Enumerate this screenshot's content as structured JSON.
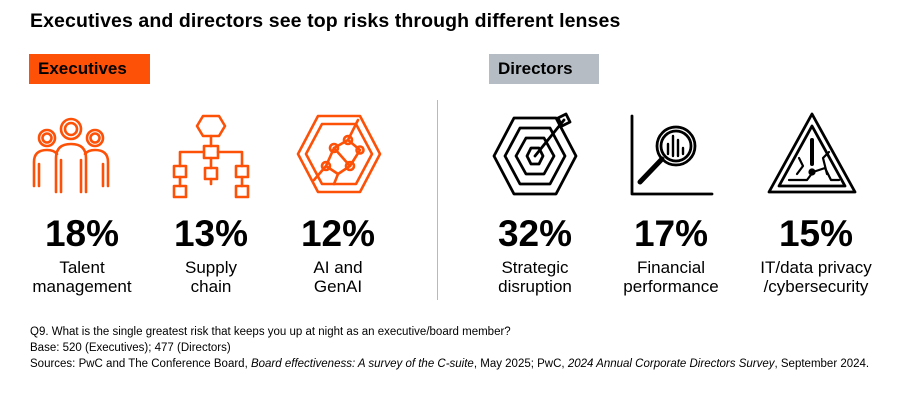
{
  "title": "Executives and directors see top risks through different lenses",
  "groups": {
    "executives": {
      "label": "Executives",
      "color": "#fd5108",
      "items": [
        {
          "value": "18%",
          "label_line1": "Talent",
          "label_line2": "management",
          "icon": "people-group-icon"
        },
        {
          "value": "13%",
          "label_line1": "Supply",
          "label_line2": "chain",
          "icon": "flowchart-icon"
        },
        {
          "value": "12%",
          "label_line1": "AI and",
          "label_line2": "GenAI",
          "icon": "ai-hexagon-network-icon"
        }
      ]
    },
    "directors": {
      "label": "Directors",
      "color": "#b5bcc4",
      "items": [
        {
          "value": "32%",
          "label_line1": "Strategic",
          "label_line2": "disruption",
          "icon": "target-hexagon-icon"
        },
        {
          "value": "17%",
          "label_line1": "Financial",
          "label_line2": "performance",
          "icon": "magnifier-chart-icon"
        },
        {
          "value": "15%",
          "label_line1": "IT/data privacy",
          "label_line2": "/cybersecurity",
          "icon": "warning-triangle-icon"
        }
      ]
    }
  },
  "footnotes": {
    "question": "Q9. What is the single greatest risk that keeps you up at night as an executive/board member?",
    "base": "Base: 520 (Executives); 477 (Directors)",
    "sources_prefix": "Sources: PwC and The Conference Board, ",
    "sources_title1": "Board effectiveness: A survey of the C-suite",
    "sources_mid": ", May 2025; PwC, ",
    "sources_title2": "2024 Annual Corporate Directors Survey",
    "sources_suffix": ", September 2024."
  }
}
